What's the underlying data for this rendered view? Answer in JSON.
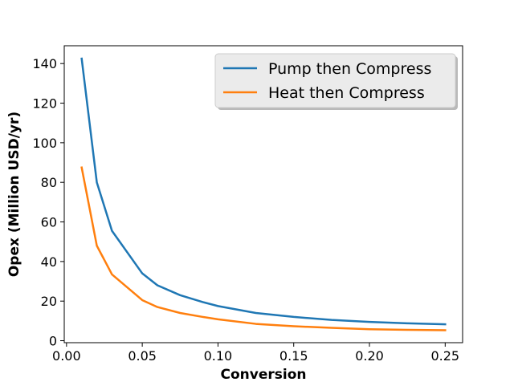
{
  "chart_data": {
    "type": "line",
    "title": "",
    "xlabel": "Conversion",
    "ylabel": "Opex (Million USD/yr)",
    "xlim": [
      -0.0015,
      0.2615
    ],
    "ylim": [
      -1,
      149
    ],
    "xticks": [
      0.0,
      0.05,
      0.1,
      0.15,
      0.2,
      0.25
    ],
    "xtick_labels": [
      "0.00",
      "0.05",
      "0.10",
      "0.15",
      "0.20",
      "0.25"
    ],
    "yticks": [
      0,
      20,
      40,
      60,
      80,
      100,
      120,
      140
    ],
    "ytick_labels": [
      "0",
      "20",
      "40",
      "60",
      "80",
      "100",
      "120",
      "140"
    ],
    "grid": false,
    "legend_position": "top-right",
    "x": [
      0.01,
      0.02,
      0.03,
      0.05,
      0.06,
      0.075,
      0.09,
      0.1,
      0.125,
      0.15,
      0.175,
      0.2,
      0.225,
      0.25
    ],
    "series": [
      {
        "name": "Pump then Compress",
        "color": "#1f77b4",
        "values": [
          142.5,
          80.0,
          55.5,
          34.0,
          28.0,
          23.0,
          19.5,
          17.5,
          14.0,
          12.0,
          10.5,
          9.5,
          8.8,
          8.3
        ]
      },
      {
        "name": "Heat then Compress",
        "color": "#ff7f0e",
        "values": [
          87.5,
          48.0,
          33.5,
          20.5,
          17.0,
          14.0,
          12.0,
          10.8,
          8.5,
          7.3,
          6.5,
          5.8,
          5.5,
          5.3
        ]
      }
    ]
  }
}
